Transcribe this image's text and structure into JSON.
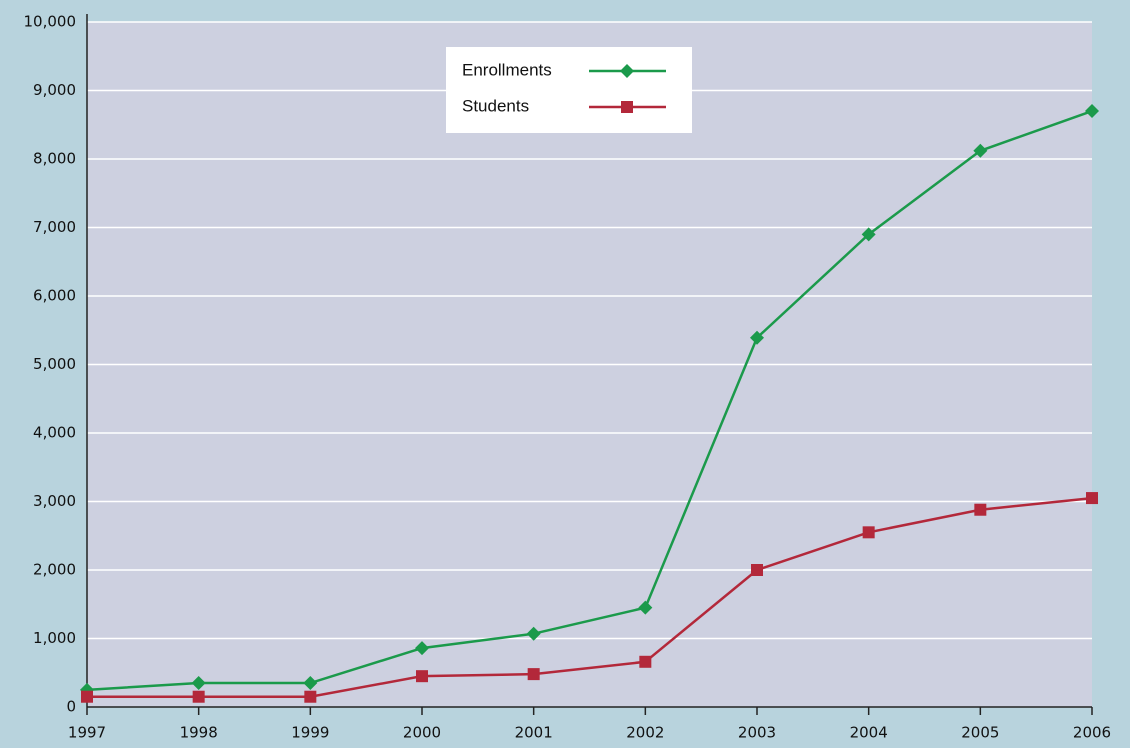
{
  "chart_data": {
    "type": "line",
    "x": [
      1997,
      1998,
      1999,
      2000,
      2001,
      2002,
      2003,
      2004,
      2005,
      2006
    ],
    "xlim": [
      1997,
      2006
    ],
    "xticks": [
      1997,
      1998,
      1999,
      2000,
      2001,
      2002,
      2003,
      2004,
      2005,
      2006
    ],
    "ylim": [
      0,
      10000
    ],
    "yticks": [
      0,
      {
        "value": 1000,
        "label": "1,000"
      },
      {
        "value": 2000,
        "label": "2,000"
      },
      {
        "value": 3000,
        "label": "3,000"
      },
      {
        "value": 4000,
        "label": "4,000"
      },
      {
        "value": 5000,
        "label": "5,000"
      },
      {
        "value": 6000,
        "label": "6,000"
      },
      {
        "value": 7000,
        "label": "7,000"
      },
      {
        "value": 8000,
        "label": "8,000"
      },
      {
        "value": 9000,
        "label": "9,000"
      },
      {
        "value": 10000,
        "label": "10,000"
      }
    ],
    "grid": true,
    "legend": "upper center",
    "series": [
      {
        "name": "Enrollments",
        "color": "#1b9a4b",
        "marker": "diamond",
        "values": [
          250,
          350,
          350,
          860,
          1070,
          1450,
          5390,
          6900,
          8120,
          8700
        ]
      },
      {
        "name": "Students",
        "color": "#b3283a",
        "marker": "square",
        "values": [
          150,
          150,
          150,
          450,
          480,
          660,
          2000,
          2550,
          2880,
          3050
        ]
      }
    ]
  }
}
